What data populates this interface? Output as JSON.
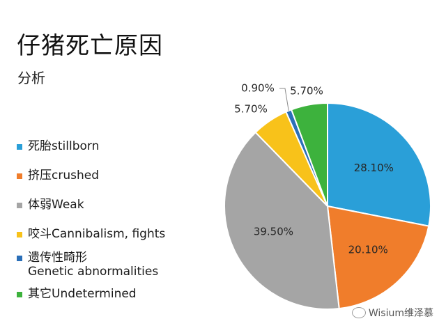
{
  "title": "仔猪死亡原因",
  "subtitle": "分析",
  "watermark": "Wisium维泽慕",
  "chart_data": {
    "type": "pie",
    "start_angle_deg": 0,
    "direction": "clockwise",
    "slices": [
      {
        "name": "死胎stillborn",
        "value": 28.1,
        "label": "28.10%",
        "color": "#2a9fd8"
      },
      {
        "name": "挤压crushed",
        "value": 20.1,
        "label": "20.10%",
        "color": "#f07d2b"
      },
      {
        "name": "体弱Weak",
        "value": 39.5,
        "label": "39.50%",
        "color": "#a5a5a5"
      },
      {
        "name": "咬斗Cannibalism, fights",
        "value": 5.7,
        "label": "5.70%",
        "color": "#f8c21a"
      },
      {
        "name": "遗传性畸形 Genetic abnormalities",
        "value": 0.9,
        "label": "0.90%",
        "color": "#2a6fb8"
      },
      {
        "name": "其它Undetermined",
        "value": 5.7,
        "label": "5.70%",
        "color": "#3db23d"
      }
    ],
    "legend": [
      {
        "lines": [
          "死胎stillborn"
        ],
        "color": "#2a9fd8"
      },
      {
        "lines": [
          "挤压crushed"
        ],
        "color": "#f07d2b"
      },
      {
        "lines": [
          "体弱Weak"
        ],
        "color": "#a5a5a5"
      },
      {
        "lines": [
          "咬斗Cannibalism, fights"
        ],
        "color": "#f8c21a"
      },
      {
        "lines": [
          "遗传性畸形",
          "Genetic abnormalities"
        ],
        "color": "#2a6fb8"
      },
      {
        "lines": [
          "其它Undetermined"
        ],
        "color": "#3db23d"
      }
    ],
    "legend_placement": "left"
  }
}
